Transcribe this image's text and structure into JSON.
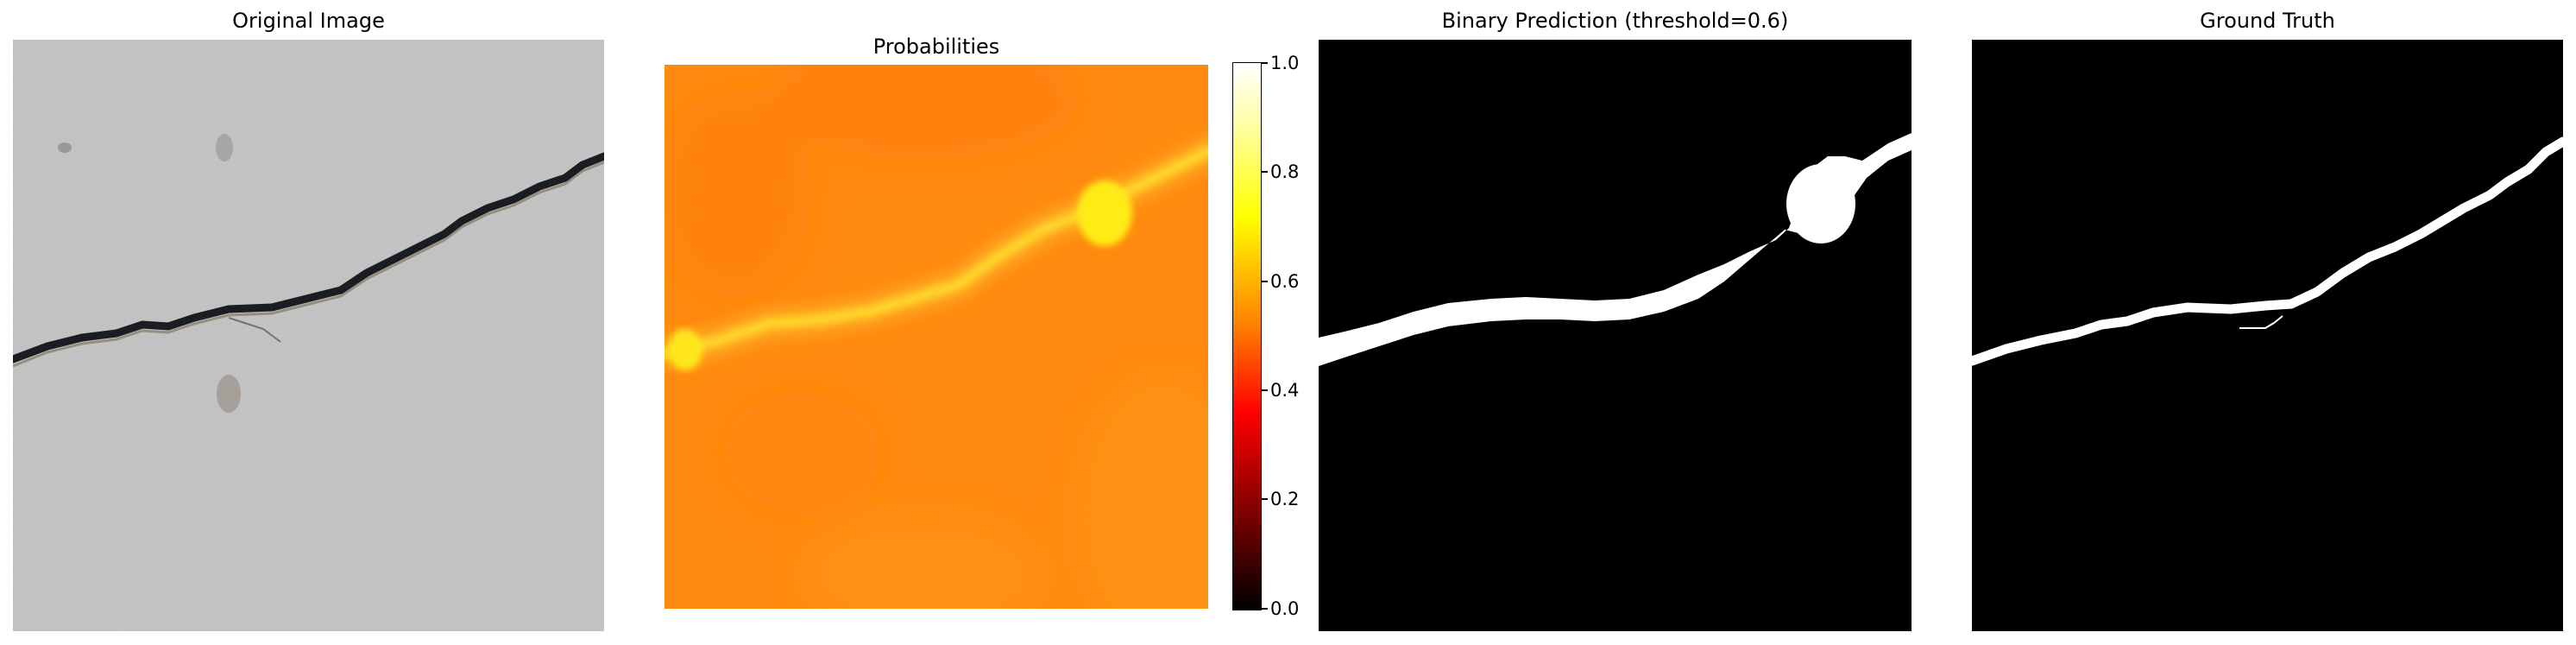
{
  "panels": {
    "original": {
      "title": "Original Image"
    },
    "probabilities": {
      "title": "Probabilities"
    },
    "binary": {
      "title": "Binary Prediction (threshold=0.6)"
    },
    "ground_truth": {
      "title": "Ground Truth"
    }
  },
  "colorbar": {
    "colormap": "hot",
    "ticks": [
      "0.0",
      "0.2",
      "0.4",
      "0.6",
      "0.8",
      "1.0"
    ],
    "range": [
      0.0,
      1.0
    ]
  },
  "colors": {
    "probability_background": "#ff8a10",
    "probability_crack": "#ffe61a",
    "concrete": "#b8b8b8",
    "crack": "#1a1d22",
    "mask_foreground": "#ffffff",
    "mask_background": "#000000"
  }
}
